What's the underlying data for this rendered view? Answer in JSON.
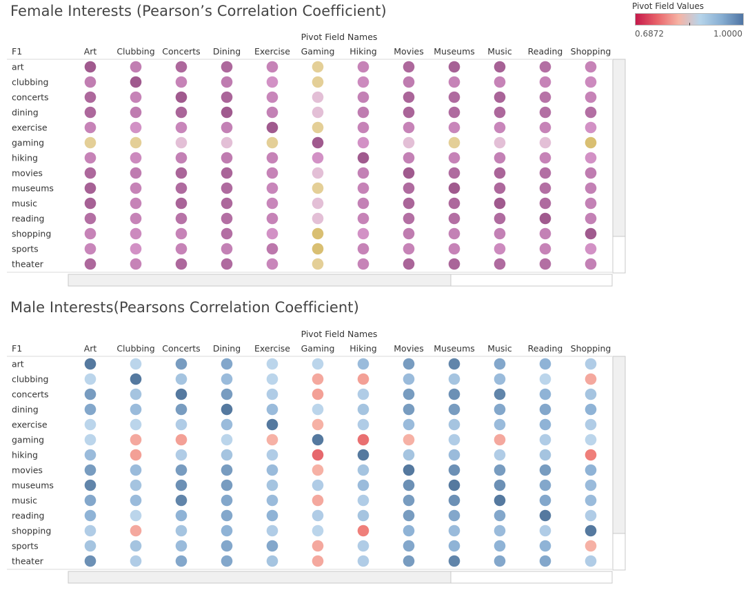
{
  "legend": {
    "title": "Pivot Field Values",
    "min_label": "0.6872",
    "max_label": "1.0000",
    "min": 0.6872,
    "max": 1.0,
    "center": 0.9,
    "gradient_colors": [
      "#c5194a",
      "#e8636a",
      "#f6b3a4",
      "#b6d4ea",
      "#87aed2",
      "#4f75a4"
    ]
  },
  "chart_data": [
    {
      "type": "heatmap",
      "title": "Female Interests (Pearson’s Correlation Coefficient)",
      "xlabel": "Pivot Field Names",
      "ylabel": "F1",
      "columns": [
        "Art",
        "Clubbing",
        "Concerts",
        "Dining",
        "Exercise",
        "Gaming",
        "Hiking",
        "Movies",
        "Museums",
        "Music",
        "Reading",
        "Shopping"
      ],
      "rows": [
        "art",
        "clubbing",
        "concerts",
        "dining",
        "exercise",
        "gaming",
        "hiking",
        "movies",
        "museums",
        "music",
        "reading",
        "shopping",
        "sports",
        "theater"
      ],
      "palette": "purple-gold",
      "values": [
        [
          1.0,
          0.74,
          0.9,
          0.9,
          0.7,
          0.3,
          0.7,
          0.9,
          0.95,
          0.95,
          0.85,
          0.7
        ],
        [
          0.74,
          1.0,
          0.7,
          0.75,
          0.6,
          0.4,
          0.65,
          0.75,
          0.7,
          0.7,
          0.7,
          0.65
        ],
        [
          0.9,
          0.7,
          1.0,
          0.92,
          0.68,
          0.45,
          0.72,
          0.92,
          0.88,
          0.93,
          0.82,
          0.7
        ],
        [
          0.9,
          0.75,
          0.92,
          1.0,
          0.72,
          0.45,
          0.75,
          0.92,
          0.88,
          0.9,
          0.85,
          0.85
        ],
        [
          0.7,
          0.6,
          0.68,
          0.72,
          1.0,
          0.3,
          0.7,
          0.7,
          0.68,
          0.68,
          0.7,
          0.6
        ],
        [
          0.3,
          0.4,
          0.45,
          0.45,
          0.3,
          1.0,
          0.6,
          0.45,
          0.4,
          0.45,
          0.45,
          0.2
        ],
        [
          0.7,
          0.65,
          0.72,
          0.75,
          0.7,
          0.6,
          1.0,
          0.72,
          0.7,
          0.72,
          0.7,
          0.6
        ],
        [
          0.9,
          0.75,
          0.92,
          0.92,
          0.7,
          0.45,
          0.72,
          1.0,
          0.88,
          0.92,
          0.85,
          0.75
        ],
        [
          0.95,
          0.7,
          0.88,
          0.88,
          0.68,
          0.4,
          0.7,
          0.88,
          1.0,
          0.9,
          0.85,
          0.72
        ],
        [
          0.95,
          0.7,
          0.93,
          0.9,
          0.68,
          0.45,
          0.72,
          0.92,
          0.9,
          1.0,
          0.88,
          0.72
        ],
        [
          0.85,
          0.7,
          0.82,
          0.85,
          0.7,
          0.45,
          0.7,
          0.85,
          0.85,
          0.88,
          1.0,
          0.72
        ],
        [
          0.7,
          0.65,
          0.7,
          0.85,
          0.6,
          0.2,
          0.6,
          0.75,
          0.72,
          0.72,
          0.72,
          1.0
        ],
        [
          0.68,
          0.6,
          0.7,
          0.72,
          0.78,
          0.2,
          0.7,
          0.7,
          0.7,
          0.65,
          0.7,
          0.6
        ],
        [
          0.9,
          0.7,
          0.9,
          0.88,
          0.68,
          0.4,
          0.7,
          0.92,
          0.92,
          0.88,
          0.85,
          0.72
        ]
      ]
    },
    {
      "type": "heatmap",
      "title": "Male Interests(Pearsons Correlation Coefficient)",
      "xlabel": "Pivot Field Names",
      "ylabel": "F1",
      "columns": [
        "Art",
        "Clubbing",
        "Concerts",
        "Dining",
        "Exercise",
        "Gaming",
        "Hiking",
        "Movies",
        "Museums",
        "Music",
        "Reading",
        "Shopping"
      ],
      "rows": [
        "art",
        "clubbing",
        "concerts",
        "dining",
        "exercise",
        "gaming",
        "hiking",
        "movies",
        "museums",
        "music",
        "reading",
        "shopping",
        "sports",
        "theater"
      ],
      "palette": "legend",
      "values": [
        [
          1.0,
          0.91,
          0.97,
          0.96,
          0.91,
          0.91,
          0.94,
          0.97,
          0.99,
          0.96,
          0.95,
          0.92
        ],
        [
          0.91,
          1.0,
          0.93,
          0.94,
          0.91,
          0.87,
          0.86,
          0.94,
          0.93,
          0.94,
          0.91,
          0.87
        ],
        [
          0.97,
          0.93,
          1.0,
          0.97,
          0.92,
          0.86,
          0.92,
          0.97,
          0.98,
          0.99,
          0.95,
          0.93
        ],
        [
          0.96,
          0.94,
          0.97,
          1.0,
          0.94,
          0.91,
          0.93,
          0.97,
          0.97,
          0.96,
          0.96,
          0.95
        ],
        [
          0.91,
          0.91,
          0.92,
          0.94,
          1.0,
          0.88,
          0.92,
          0.94,
          0.93,
          0.94,
          0.95,
          0.92
        ],
        [
          0.91,
          0.87,
          0.86,
          0.91,
          0.88,
          1.0,
          0.8,
          0.88,
          0.92,
          0.87,
          0.92,
          0.91
        ],
        [
          0.94,
          0.86,
          0.92,
          0.93,
          0.92,
          0.79,
          1.0,
          0.93,
          0.94,
          0.92,
          0.93,
          0.82
        ],
        [
          0.97,
          0.94,
          0.97,
          0.97,
          0.94,
          0.88,
          0.93,
          1.0,
          0.98,
          0.97,
          0.97,
          0.95
        ],
        [
          0.99,
          0.93,
          0.98,
          0.97,
          0.93,
          0.92,
          0.94,
          0.98,
          1.0,
          0.98,
          0.96,
          0.94
        ],
        [
          0.96,
          0.94,
          0.99,
          0.96,
          0.94,
          0.87,
          0.92,
          0.97,
          0.98,
          1.0,
          0.96,
          0.94
        ],
        [
          0.95,
          0.91,
          0.95,
          0.96,
          0.95,
          0.92,
          0.93,
          0.97,
          0.96,
          0.96,
          1.0,
          0.92
        ],
        [
          0.92,
          0.87,
          0.93,
          0.95,
          0.92,
          0.91,
          0.82,
          0.95,
          0.94,
          0.94,
          0.92,
          1.0
        ],
        [
          0.93,
          0.93,
          0.94,
          0.96,
          0.96,
          0.87,
          0.92,
          0.96,
          0.95,
          0.95,
          0.95,
          0.88
        ],
        [
          0.98,
          0.92,
          0.96,
          0.96,
          0.93,
          0.87,
          0.92,
          0.97,
          0.99,
          0.96,
          0.96,
          0.92
        ]
      ]
    }
  ]
}
